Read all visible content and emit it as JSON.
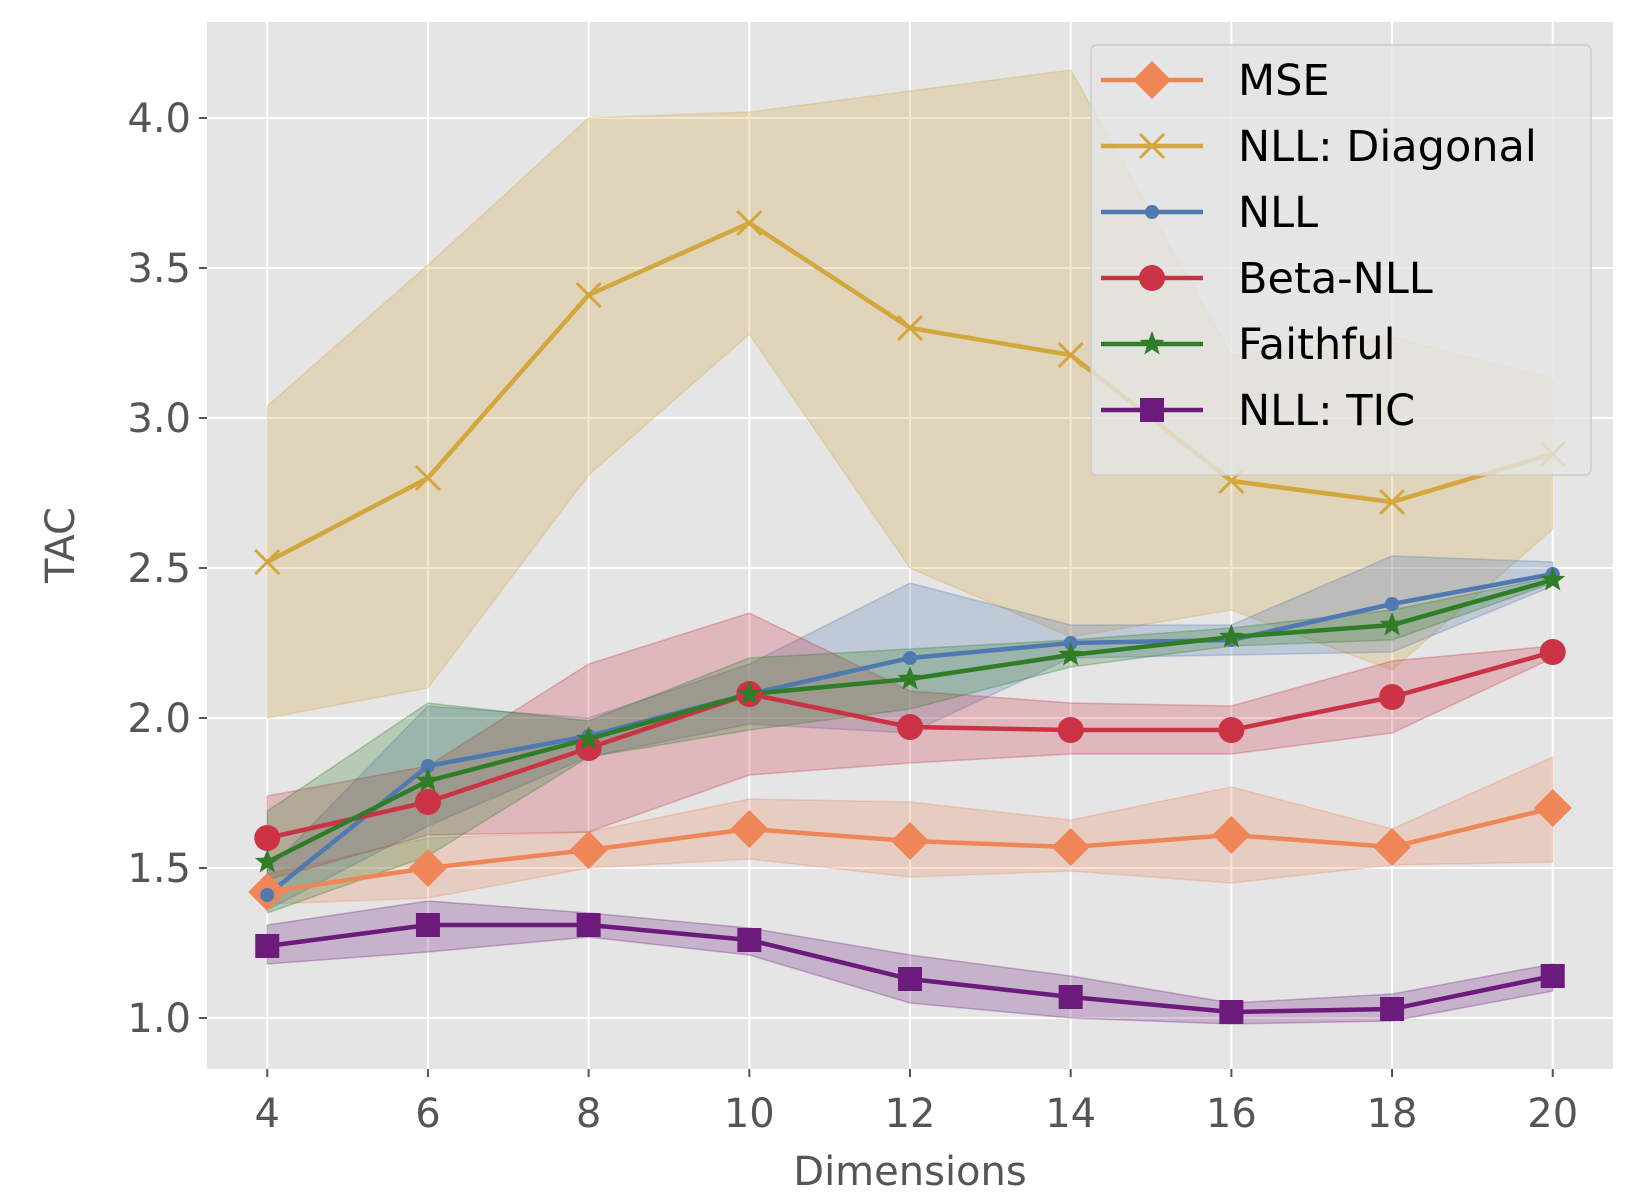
{
  "chart_data": {
    "type": "line",
    "title": "",
    "xlabel": "Dimensions",
    "ylabel": "TAC",
    "x": [
      4,
      6,
      8,
      10,
      12,
      14,
      16,
      18,
      20
    ],
    "xticks": [
      "4",
      "6",
      "8",
      "10",
      "12",
      "14",
      "16",
      "18",
      "20"
    ],
    "yticks": [
      "1.0",
      "1.5",
      "2.0",
      "2.5",
      "3.0",
      "3.5",
      "4.0"
    ],
    "xlim": [
      3.25,
      20.75
    ],
    "ylim": [
      0.83,
      4.32
    ],
    "grid": true,
    "legend_position": "top-right",
    "background": "#e5e5e5",
    "series": [
      {
        "name": "MSE",
        "color": "#ee8658",
        "marker": "diamond",
        "values": [
          1.42,
          1.5,
          1.56,
          1.63,
          1.59,
          1.57,
          1.61,
          1.57,
          1.7
        ],
        "upper": [
          1.48,
          1.6,
          1.62,
          1.73,
          1.72,
          1.66,
          1.77,
          1.63,
          1.87
        ],
        "lower": [
          1.38,
          1.4,
          1.5,
          1.53,
          1.47,
          1.49,
          1.45,
          1.51,
          1.52
        ]
      },
      {
        "name": "NLL: Diagonal",
        "color": "#d3a63e",
        "marker": "x",
        "values": [
          2.52,
          2.8,
          3.41,
          3.65,
          3.3,
          3.21,
          2.79,
          2.72,
          2.88
        ],
        "upper": [
          3.04,
          3.51,
          4.0,
          4.02,
          4.09,
          4.16,
          3.21,
          3.27,
          3.13
        ],
        "lower": [
          2.0,
          2.1,
          2.81,
          3.28,
          2.5,
          2.27,
          2.36,
          2.16,
          2.63
        ]
      },
      {
        "name": "NLL",
        "color": "#4f79b0",
        "marker": "dot",
        "values": [
          1.41,
          1.84,
          1.94,
          2.08,
          2.2,
          2.25,
          2.26,
          2.38,
          2.48
        ],
        "upper": [
          1.49,
          2.04,
          2.0,
          2.18,
          2.45,
          2.31,
          2.31,
          2.54,
          2.52
        ],
        "lower": [
          1.36,
          1.64,
          1.87,
          1.98,
          1.95,
          2.2,
          2.21,
          2.22,
          2.44
        ]
      },
      {
        "name": "Beta-NLL",
        "color": "#cb3244",
        "marker": "circle",
        "values": [
          1.6,
          1.72,
          1.9,
          2.08,
          1.97,
          1.96,
          1.96,
          2.07,
          2.22
        ],
        "upper": [
          1.74,
          1.84,
          2.18,
          2.35,
          2.09,
          2.05,
          2.04,
          2.19,
          2.24
        ],
        "lower": [
          1.46,
          1.61,
          1.62,
          1.81,
          1.85,
          1.88,
          1.88,
          1.95,
          2.2
        ]
      },
      {
        "name": "Faithful",
        "color": "#2f7d27",
        "marker": "star",
        "values": [
          1.52,
          1.79,
          1.93,
          2.08,
          2.13,
          2.21,
          2.27,
          2.31,
          2.46
        ],
        "upper": [
          1.69,
          2.05,
          1.99,
          2.2,
          2.23,
          2.26,
          2.3,
          2.36,
          2.47
        ],
        "lower": [
          1.35,
          1.54,
          1.87,
          1.96,
          2.03,
          2.17,
          2.24,
          2.26,
          2.45
        ]
      },
      {
        "name": "NLL: TIC",
        "color": "#6c1a7c",
        "marker": "square",
        "values": [
          1.24,
          1.31,
          1.31,
          1.26,
          1.13,
          1.07,
          1.02,
          1.03,
          1.14
        ],
        "upper": [
          1.31,
          1.39,
          1.35,
          1.3,
          1.21,
          1.14,
          1.05,
          1.08,
          1.18
        ],
        "lower": [
          1.18,
          1.22,
          1.27,
          1.21,
          1.05,
          1.0,
          0.98,
          0.99,
          1.09
        ]
      }
    ]
  }
}
